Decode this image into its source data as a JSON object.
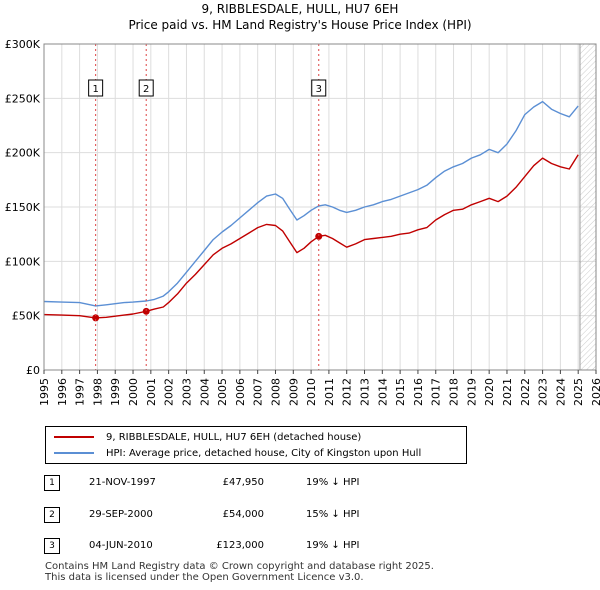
{
  "title": "9, RIBBLESDALE, HULL, HU7 6EH",
  "subtitle": "Price paid vs. HM Land Registry's House Price Index (HPI)",
  "colors": {
    "property": "#c00000",
    "hpi": "#5b8fd4",
    "future_hatch": "#cccccc",
    "sale_line": "#dd4444",
    "grid": "#dddddd"
  },
  "chart_data": {
    "type": "line",
    "title": "Price paid vs. HM Land Registry's House Price Index (HPI)",
    "xlabel": "",
    "ylabel": "",
    "xlim": [
      1995,
      2026
    ],
    "ylim": [
      0,
      300000
    ],
    "x_ticks": [
      1995,
      1996,
      1997,
      1998,
      1999,
      2000,
      2001,
      2002,
      2003,
      2004,
      2005,
      2006,
      2007,
      2008,
      2009,
      2010,
      2011,
      2012,
      2013,
      2014,
      2015,
      2016,
      2017,
      2018,
      2019,
      2020,
      2021,
      2022,
      2023,
      2024,
      2025,
      2026
    ],
    "y_ticks": [
      0,
      50000,
      100000,
      150000,
      200000,
      250000,
      300000
    ],
    "y_tick_labels": [
      "£0",
      "£50K",
      "£100K",
      "£150K",
      "£200K",
      "£250K",
      "£300K"
    ],
    "grid": true,
    "future_from": 2025.1,
    "series": [
      {
        "name": "9, RIBBLESDALE, HULL, HU7 6EH (detached house)",
        "x": [
          1995,
          1996,
          1997,
          1997.9,
          1998.5,
          1999,
          1999.5,
          2000,
          2000.74,
          2001.2,
          2001.7,
          2002,
          2002.5,
          2003,
          2003.5,
          2004,
          2004.5,
          2005,
          2005.5,
          2006,
          2006.5,
          2007,
          2007.5,
          2008,
          2008.4,
          2008.8,
          2009.2,
          2009.6,
          2010,
          2010.43,
          2010.8,
          2011.2,
          2011.6,
          2012,
          2012.5,
          2013,
          2013.5,
          2014,
          2014.5,
          2015,
          2015.5,
          2016,
          2016.5,
          2017,
          2017.5,
          2018,
          2018.5,
          2019,
          2019.5,
          2020,
          2020.5,
          2021,
          2021.5,
          2022,
          2022.5,
          2023,
          2023.5,
          2024,
          2024.5,
          2025
        ],
        "values": [
          51000,
          50500,
          50000,
          47950,
          48500,
          49500,
          50500,
          51500,
          54000,
          56000,
          58000,
          62000,
          70000,
          80000,
          88000,
          97000,
          106000,
          112000,
          116000,
          121000,
          126000,
          131000,
          134000,
          133000,
          128000,
          118000,
          108000,
          112000,
          118000,
          123000,
          124000,
          121000,
          117000,
          113000,
          116000,
          120000,
          121000,
          122000,
          123000,
          125000,
          126000,
          129000,
          131000,
          138000,
          143000,
          147000,
          148000,
          152000,
          155000,
          158000,
          155000,
          160000,
          168000,
          178000,
          188000,
          195000,
          190000,
          187000,
          185000,
          198000
        ]
      },
      {
        "name": "HPI: Average price, detached house, City of Kingston upon Hull",
        "x": [
          1995,
          1996,
          1997,
          1997.9,
          1998.5,
          1999,
          1999.5,
          2000,
          2000.74,
          2001.2,
          2001.7,
          2002,
          2002.5,
          2003,
          2003.5,
          2004,
          2004.5,
          2005,
          2005.5,
          2006,
          2006.5,
          2007,
          2007.5,
          2008,
          2008.4,
          2008.8,
          2009.2,
          2009.6,
          2010,
          2010.43,
          2010.8,
          2011.2,
          2011.6,
          2012,
          2012.5,
          2013,
          2013.5,
          2014,
          2014.5,
          2015,
          2015.5,
          2016,
          2016.5,
          2017,
          2017.5,
          2018,
          2018.5,
          2019,
          2019.5,
          2020,
          2020.5,
          2021,
          2021.5,
          2022,
          2022.5,
          2023,
          2023.5,
          2024,
          2024.5,
          2025
        ],
        "values": [
          63000,
          62500,
          62000,
          59000,
          60000,
          61000,
          62000,
          62500,
          63500,
          65000,
          68000,
          72000,
          80000,
          90000,
          100000,
          110000,
          120000,
          127000,
          133000,
          140000,
          147000,
          154000,
          160000,
          162000,
          158000,
          148000,
          138000,
          142000,
          147000,
          151000,
          152000,
          150000,
          147000,
          145000,
          147000,
          150000,
          152000,
          155000,
          157000,
          160000,
          163000,
          166000,
          170000,
          177000,
          183000,
          187000,
          190000,
          195000,
          198000,
          203000,
          200000,
          208000,
          220000,
          235000,
          242000,
          247000,
          240000,
          236000,
          233000,
          243000
        ]
      }
    ],
    "sales": [
      {
        "label": "1",
        "x": 1997.9,
        "value": 47950
      },
      {
        "label": "2",
        "x": 2000.74,
        "value": 54000
      },
      {
        "label": "3",
        "x": 2010.43,
        "value": 123000
      }
    ]
  },
  "legend": {
    "property_label": "9, RIBBLESDALE, HULL, HU7 6EH (detached house)",
    "hpi_label": "HPI: Average price, detached house, City of Kingston upon Hull"
  },
  "transactions": [
    {
      "num": "1",
      "date": "21-NOV-1997",
      "price": "£47,950",
      "hpi": "19% ↓ HPI"
    },
    {
      "num": "2",
      "date": "29-SEP-2000",
      "price": "£54,000",
      "hpi": "15% ↓ HPI"
    },
    {
      "num": "3",
      "date": "04-JUN-2010",
      "price": "£123,000",
      "hpi": "19% ↓ HPI"
    }
  ],
  "footer": {
    "line1": "Contains HM Land Registry data © Crown copyright and database right 2025.",
    "line2": "This data is licensed under the Open Government Licence v3.0."
  }
}
